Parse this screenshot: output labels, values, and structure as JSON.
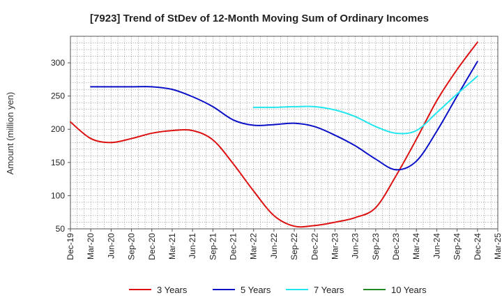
{
  "chart_data": {
    "type": "line",
    "title": "[7923]  Trend of StDev of 12-Month Moving Sum of Ordinary Incomes",
    "ylabel": "Amount (million yen)",
    "xlabel": "",
    "ylim": [
      50,
      340
    ],
    "yticks": [
      50,
      100,
      150,
      200,
      250,
      300
    ],
    "x_tick_labels": [
      "Dec-19",
      "Mar-20",
      "Jun-20",
      "Sep-20",
      "Dec-20",
      "Mar-21",
      "Jun-21",
      "Sep-21",
      "Dec-21",
      "Mar-22",
      "Jun-22",
      "Sep-22",
      "Dec-22",
      "Mar-23",
      "Jun-23",
      "Sep-23",
      "Dec-23",
      "Mar-24",
      "Jun-24",
      "Sep-24",
      "Dec-24",
      "Mar-25"
    ],
    "grid": true,
    "legend_position": "bottom",
    "series": [
      {
        "name": "3 Years",
        "color": "#dd1111",
        "points": [
          [
            0,
            211
          ],
          [
            1,
            186
          ],
          [
            2,
            180
          ],
          [
            3,
            186
          ],
          [
            4,
            194
          ],
          [
            5,
            198
          ],
          [
            6,
            198
          ],
          [
            7,
            184
          ],
          [
            8,
            148
          ],
          [
            9,
            107
          ],
          [
            10,
            70
          ],
          [
            11,
            54
          ],
          [
            12,
            55
          ],
          [
            13,
            60
          ],
          [
            14,
            67
          ],
          [
            15,
            82
          ],
          [
            16,
            130
          ],
          [
            17,
            185
          ],
          [
            18,
            243
          ],
          [
            19,
            290
          ],
          [
            20,
            331
          ]
        ]
      },
      {
        "name": "5 Years",
        "color": "#0a10c8",
        "points": [
          [
            1,
            264
          ],
          [
            2,
            264
          ],
          [
            3,
            264
          ],
          [
            4,
            264
          ],
          [
            5,
            260
          ],
          [
            6,
            249
          ],
          [
            7,
            234
          ],
          [
            8,
            214
          ],
          [
            9,
            206
          ],
          [
            10,
            207
          ],
          [
            11,
            209
          ],
          [
            12,
            204
          ],
          [
            13,
            191
          ],
          [
            14,
            175
          ],
          [
            15,
            155
          ],
          [
            16,
            139
          ],
          [
            17,
            152
          ],
          [
            18,
            197
          ],
          [
            19,
            250
          ],
          [
            20,
            302
          ]
        ]
      },
      {
        "name": "7 Years",
        "color": "#22e6ee",
        "points": [
          [
            9,
            233
          ],
          [
            10,
            233
          ],
          [
            11,
            234
          ],
          [
            12,
            234
          ],
          [
            13,
            229
          ],
          [
            14,
            219
          ],
          [
            15,
            204
          ],
          [
            16,
            194
          ],
          [
            17,
            198
          ],
          [
            18,
            225
          ],
          [
            19,
            253
          ],
          [
            20,
            280
          ]
        ]
      },
      {
        "name": "10 Years",
        "color": "#228822",
        "points": []
      }
    ]
  }
}
